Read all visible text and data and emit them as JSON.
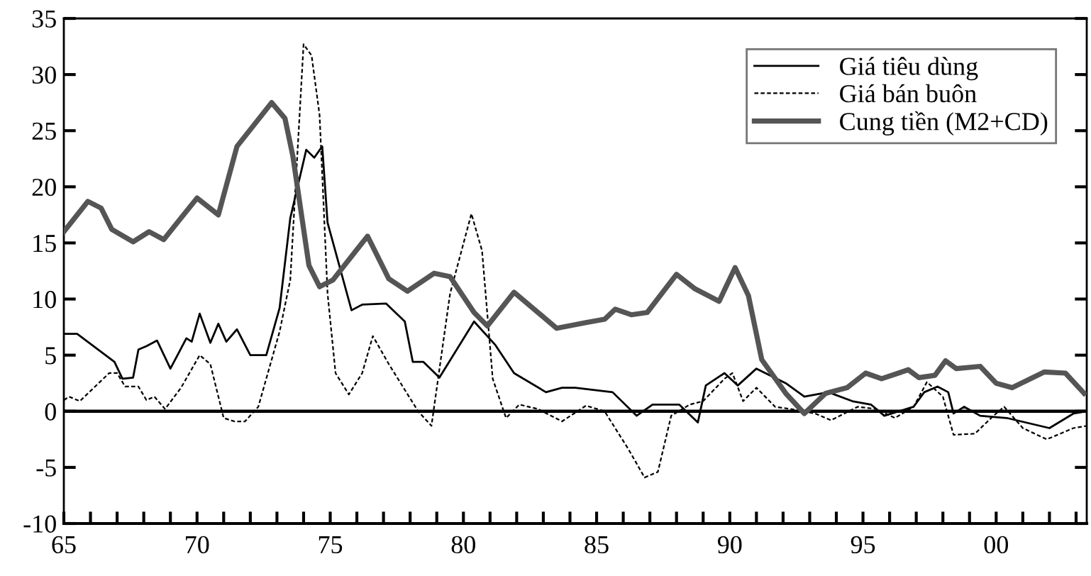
{
  "chart_data": {
    "type": "line",
    "xlim": [
      1965,
      2003.4
    ],
    "ylim": [
      -10,
      35
    ],
    "xticks": [
      {
        "value": 1965,
        "label": "65"
      },
      {
        "value": 1966,
        "label": null
      },
      {
        "value": 1967,
        "label": null
      },
      {
        "value": 1968,
        "label": null
      },
      {
        "value": 1969,
        "label": null
      },
      {
        "value": 1970,
        "label": "70"
      },
      {
        "value": 1971,
        "label": null
      },
      {
        "value": 1972,
        "label": null
      },
      {
        "value": 1973,
        "label": null
      },
      {
        "value": 1974,
        "label": null
      },
      {
        "value": 1975,
        "label": "75"
      },
      {
        "value": 1976,
        "label": null
      },
      {
        "value": 1977,
        "label": null
      },
      {
        "value": 1978,
        "label": null
      },
      {
        "value": 1979,
        "label": null
      },
      {
        "value": 1980,
        "label": "80"
      },
      {
        "value": 1981,
        "label": null
      },
      {
        "value": 1982,
        "label": null
      },
      {
        "value": 1983,
        "label": null
      },
      {
        "value": 1984,
        "label": null
      },
      {
        "value": 1985,
        "label": "85"
      },
      {
        "value": 1986,
        "label": null
      },
      {
        "value": 1987,
        "label": null
      },
      {
        "value": 1988,
        "label": null
      },
      {
        "value": 1989,
        "label": null
      },
      {
        "value": 1990,
        "label": "90"
      },
      {
        "value": 1991,
        "label": null
      },
      {
        "value": 1992,
        "label": null
      },
      {
        "value": 1993,
        "label": null
      },
      {
        "value": 1994,
        "label": null
      },
      {
        "value": 1995,
        "label": "95"
      },
      {
        "value": 1996,
        "label": null
      },
      {
        "value": 1997,
        "label": null
      },
      {
        "value": 1998,
        "label": null
      },
      {
        "value": 1999,
        "label": null
      },
      {
        "value": 2000,
        "label": "00"
      },
      {
        "value": 2001,
        "label": null
      },
      {
        "value": 2002,
        "label": null
      },
      {
        "value": 2003,
        "label": null
      }
    ],
    "yticks": [
      -10,
      -5,
      0,
      5,
      10,
      15,
      20,
      25,
      30,
      35
    ],
    "grid": false,
    "legend": "top right",
    "marker": "none",
    "ref_lines": [
      {
        "axis": "y",
        "value": 0,
        "label": null,
        "color": "#000000"
      }
    ],
    "series": [
      {
        "name": "Giá tiêu dùng",
        "color": "#000000",
        "line_style": "solid",
        "x": [
          1965.0,
          1965.5,
          1966.9,
          1967.2,
          1967.6,
          1967.8,
          1968.1,
          1968.5,
          1969.0,
          1969.6,
          1969.8,
          1970.1,
          1970.5,
          1970.8,
          1971.1,
          1971.5,
          1972.0,
          1972.6,
          1973.1,
          1973.5,
          1974.1,
          1974.4,
          1974.7,
          1974.9,
          1975.8,
          1976.2,
          1977.1,
          1977.8,
          1978.1,
          1978.5,
          1979.1,
          1980.4,
          1981.2,
          1981.9,
          1983.1,
          1983.7,
          1984.2,
          1985.6,
          1986.5,
          1987.1,
          1988.1,
          1988.8,
          1989.1,
          1989.8,
          1990.3,
          1991.0,
          1992.1,
          1992.8,
          1993.7,
          1994.6,
          1995.3,
          1995.8,
          1996.9,
          1997.3,
          1997.8,
          1998.2,
          1998.4,
          1998.8,
          1999.4,
          2000.4,
          2002.0,
          2002.9,
          2003.4
        ],
        "values": [
          6.9,
          6.9,
          4.4,
          2.9,
          3.0,
          5.5,
          5.8,
          6.3,
          3.8,
          6.5,
          6.2,
          8.7,
          6.1,
          7.8,
          6.2,
          7.3,
          5.0,
          5.0,
          9.2,
          17.2,
          23.3,
          22.6,
          23.6,
          16.8,
          9.0,
          9.5,
          9.6,
          8.0,
          4.4,
          4.4,
          3.0,
          8.0,
          5.9,
          3.4,
          1.7,
          2.1,
          2.1,
          1.7,
          -0.4,
          0.6,
          0.6,
          -1.0,
          2.3,
          3.4,
          2.3,
          3.8,
          2.5,
          1.3,
          1.7,
          0.9,
          0.6,
          -0.4,
          0.4,
          1.7,
          2.2,
          1.7,
          -0.2,
          0.4,
          -0.4,
          -0.6,
          -1.5,
          -0.2,
          0.0
        ]
      },
      {
        "name": "Giá bán buôn",
        "color": "#000000",
        "line_style": "dashed",
        "x": [
          1965.0,
          1965.2,
          1965.6,
          1966.7,
          1967.0,
          1967.3,
          1967.8,
          1968.1,
          1968.4,
          1968.8,
          1969.4,
          1970.1,
          1970.5,
          1971.0,
          1971.4,
          1971.8,
          1972.3,
          1973.1,
          1973.5,
          1974.0,
          1974.3,
          1974.6,
          1974.9,
          1975.2,
          1975.7,
          1976.2,
          1976.6,
          1977.2,
          1978.3,
          1978.8,
          1979.5,
          1980.3,
          1980.7,
          1981.1,
          1981.6,
          1982.1,
          1982.8,
          1983.7,
          1984.6,
          1985.3,
          1986.2,
          1986.8,
          1987.3,
          1987.8,
          1988.5,
          1989.0,
          1989.8,
          1990.1,
          1990.5,
          1991.0,
          1991.7,
          1992.3,
          1993.2,
          1993.8,
          1994.8,
          1995.5,
          1996.2,
          1996.9,
          1997.4,
          1998.0,
          1998.4,
          1999.2,
          1999.9,
          2000.3,
          2001.0,
          2001.9,
          2002.9,
          2003.4
        ],
        "values": [
          1.0,
          1.3,
          0.9,
          3.4,
          3.4,
          2.2,
          2.2,
          1.0,
          1.3,
          0.2,
          2.1,
          5.0,
          4.2,
          -0.6,
          -0.9,
          -0.9,
          0.4,
          7.1,
          11.7,
          32.7,
          31.7,
          26.4,
          10.5,
          3.4,
          1.5,
          3.4,
          6.7,
          4.2,
          0.0,
          -1.3,
          10.5,
          17.6,
          14.3,
          2.9,
          -0.6,
          0.6,
          0.2,
          -0.9,
          0.5,
          0.0,
          -3.4,
          -5.9,
          -5.4,
          -0.4,
          0.6,
          0.9,
          2.9,
          3.4,
          0.9,
          2.1,
          0.4,
          0.2,
          -0.2,
          -0.8,
          0.4,
          0.2,
          -0.6,
          0.4,
          2.6,
          1.3,
          -2.1,
          -2.0,
          -0.4,
          0.4,
          -1.5,
          -2.5,
          -1.5,
          -1.3
        ]
      },
      {
        "name": "Cung tiền (M2+CD)",
        "color": "#555555",
        "line_style": "solid",
        "x": [
          1965.0,
          1965.9,
          1966.4,
          1966.8,
          1967.6,
          1968.2,
          1968.75,
          1970.0,
          1970.8,
          1971.5,
          1972.8,
          1973.3,
          1973.6,
          1974.2,
          1974.6,
          1975.1,
          1976.4,
          1977.2,
          1977.9,
          1978.9,
          1979.5,
          1980.4,
          1980.9,
          1981.9,
          1983.5,
          1984.6,
          1985.3,
          1985.7,
          1986.3,
          1986.9,
          1988.0,
          1988.7,
          1989.6,
          1990.2,
          1990.7,
          1991.2,
          1992.1,
          1992.8,
          1993.6,
          1994.4,
          1995.1,
          1995.7,
          1996.7,
          1997.1,
          1997.7,
          1998.1,
          1998.5,
          1999.4,
          2000.0,
          2000.6,
          2001.8,
          2002.6,
          2003.3
        ],
        "values": [
          16.0,
          18.7,
          18.1,
          16.2,
          15.1,
          16.0,
          15.3,
          19.0,
          17.5,
          23.6,
          27.5,
          26.1,
          22.7,
          13.0,
          11.1,
          11.7,
          15.6,
          11.8,
          10.7,
          12.3,
          12.0,
          8.8,
          7.6,
          10.6,
          7.4,
          7.9,
          8.2,
          9.1,
          8.6,
          8.8,
          12.2,
          10.9,
          9.8,
          12.8,
          10.3,
          4.6,
          1.6,
          -0.2,
          1.6,
          2.1,
          3.4,
          2.9,
          3.7,
          3.0,
          3.2,
          4.5,
          3.8,
          4.0,
          2.5,
          2.1,
          3.5,
          3.4,
          1.6
        ]
      }
    ]
  }
}
